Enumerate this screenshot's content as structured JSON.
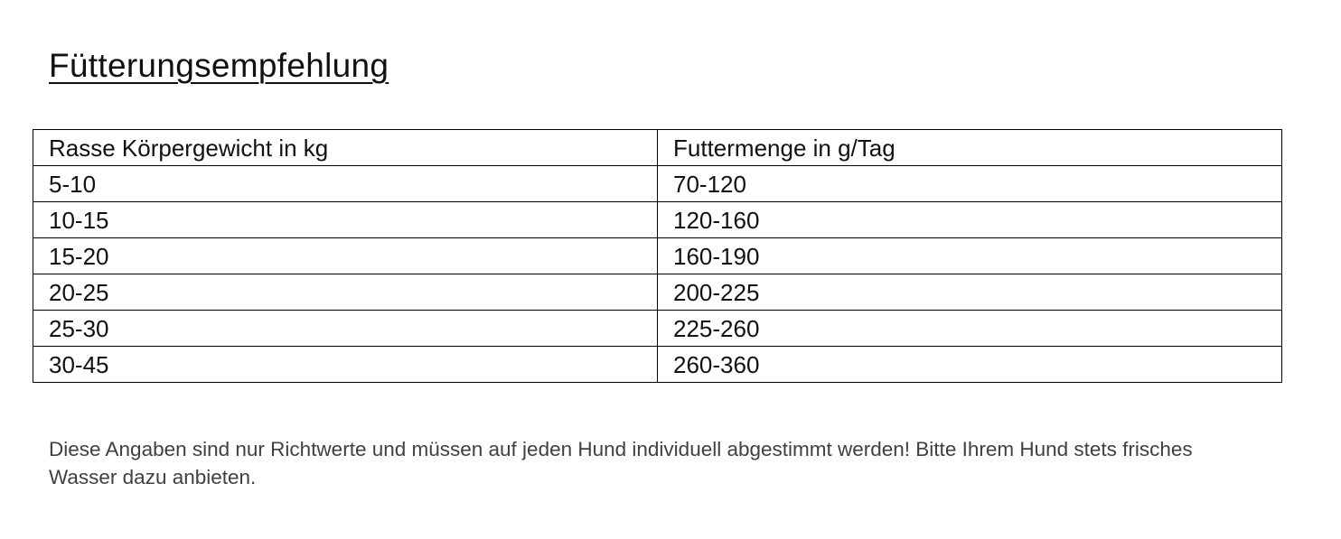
{
  "title": "Fütterungsempfehlung",
  "table": {
    "headers": [
      "Rasse Körpergewicht in kg",
      "Futtermenge in g/Tag"
    ],
    "rows": [
      [
        "5-10",
        "70-120"
      ],
      [
        "10-15",
        "120-160"
      ],
      [
        "15-20",
        "160-190"
      ],
      [
        "20-25",
        "200-225"
      ],
      [
        "25-30",
        "225-260"
      ],
      [
        "30-45",
        "260-360"
      ]
    ]
  },
  "note": "Diese Angaben sind nur Richtwerte und müssen auf jeden Hund individuell abgestimmt werden! Bitte Ihrem Hund stets frisches Wasser dazu anbieten."
}
